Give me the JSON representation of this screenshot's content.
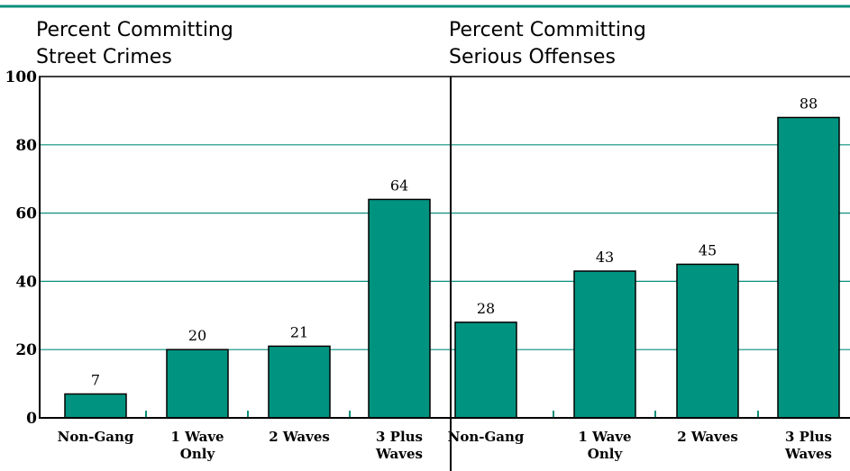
{
  "colors": {
    "bar": "#009480",
    "grid": "#0a8f7d",
    "axis": "#000000"
  },
  "chart_data": [
    {
      "type": "bar",
      "title": [
        "Percent Committing",
        "Street Crimes"
      ],
      "categories": [
        [
          "Non-Gang"
        ],
        [
          "1 Wave",
          "Only"
        ],
        [
          "2 Waves"
        ],
        [
          "3 Plus",
          "Waves"
        ]
      ],
      "values": [
        7,
        20,
        21,
        64
      ],
      "ylim": [
        0,
        100
      ],
      "yticks": [
        "0",
        "20",
        "40",
        "60",
        "80",
        "100"
      ],
      "grid": true
    },
    {
      "type": "bar",
      "title": [
        "Percent Committing",
        "Serious Offenses"
      ],
      "categories": [
        [
          "Non-Gang"
        ],
        [
          "1 Wave",
          "Only"
        ],
        [
          "2 Waves"
        ],
        [
          "3 Plus",
          "Waves"
        ]
      ],
      "values": [
        28,
        43,
        45,
        88
      ],
      "ylim": [
        0,
        100
      ],
      "grid": true
    }
  ]
}
